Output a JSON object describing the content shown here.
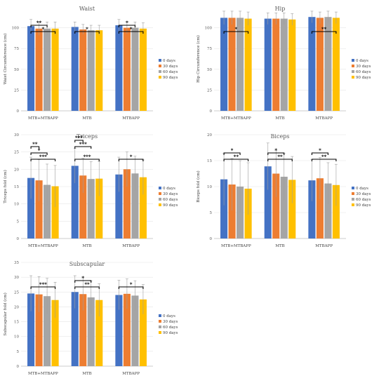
{
  "colors": {
    "0 days": "#4472C4",
    "30 days": "#ED7D31",
    "60 days": "#A5A5A5",
    "90 days": "#FFC000"
  },
  "chart_data": [
    {
      "type": "bar",
      "title": "Waist",
      "ylabel": "Waist Circumference (cm)",
      "ylim": [
        0,
        125
      ],
      "yticks": [
        0,
        25,
        50,
        75,
        100
      ],
      "ytick_labels": [
        "0",
        "25",
        "50",
        "75",
        "100"
      ],
      "categories": [
        "MTB+MTBAPP",
        "MTB",
        "MTBAPP"
      ],
      "series": [
        {
          "name": "0 days",
          "values": [
            102,
            101,
            103
          ],
          "err": [
            8,
            6,
            7
          ]
        },
        {
          "name": "30 days",
          "values": [
            99,
            98,
            100
          ],
          "err": [
            8,
            6,
            7
          ]
        },
        {
          "name": "60 days",
          "values": [
            99,
            97,
            100
          ],
          "err": [
            8,
            6,
            7
          ]
        },
        {
          "name": "90 days",
          "values": [
            99,
            97,
            99
          ],
          "err": [
            8,
            6,
            7
          ]
        }
      ],
      "brackets": [
        {
          "cat": 0,
          "from": 0,
          "to": 2,
          "level": 2,
          "label": "**"
        },
        {
          "cat": 0,
          "from": 0,
          "to": 3,
          "level": 1,
          "label": "*"
        },
        {
          "cat": 1,
          "from": 0,
          "to": 3,
          "level": 1,
          "label": "*"
        },
        {
          "cat": 2,
          "from": 0,
          "to": 2,
          "level": 2,
          "label": "*"
        },
        {
          "cat": 2,
          "from": 0,
          "to": 3,
          "level": 1,
          "label": "*"
        }
      ]
    },
    {
      "type": "bar",
      "title": "Hip",
      "ylabel": "Hip Circumference (cm)",
      "ylim": [
        0,
        125
      ],
      "yticks": [
        0,
        25,
        50,
        75,
        100
      ],
      "ytick_labels": [
        "0",
        "25",
        "50",
        "75",
        "100"
      ],
      "categories": [
        "MTB+MTBAPP",
        "MTB",
        "MTBAPP"
      ],
      "series": [
        {
          "name": "0 days",
          "values": [
            112,
            111,
            113
          ],
          "err": [
            8,
            7,
            7
          ]
        },
        {
          "name": "30 days",
          "values": [
            112,
            111,
            112
          ],
          "err": [
            8,
            7,
            7
          ]
        },
        {
          "name": "60 days",
          "values": [
            112,
            111,
            113
          ],
          "err": [
            8,
            7,
            7
          ]
        },
        {
          "name": "90 days",
          "values": [
            111,
            110,
            112
          ],
          "err": [
            8,
            7,
            7
          ]
        }
      ],
      "brackets": [
        {
          "cat": 0,
          "from": 0,
          "to": 3,
          "level": 1,
          "label": "*"
        },
        {
          "cat": 2,
          "from": 0,
          "to": 3,
          "level": 1,
          "label": "**"
        }
      ]
    },
    {
      "type": "bar",
      "title": "Triceps",
      "ylabel": "Triceps fold (cm)",
      "ylim": [
        0,
        30
      ],
      "yticks": [
        0,
        5,
        10,
        15,
        20,
        25,
        30
      ],
      "ytick_labels": [
        "0",
        "5",
        "10",
        "15",
        "20",
        "25",
        "30"
      ],
      "categories": [
        "MTB+MTBAPP",
        "MTB",
        "MTBAPP"
      ],
      "series": [
        {
          "name": "0 days",
          "values": [
            17.5,
            21,
            18.5
          ],
          "err": [
            6,
            5,
            5
          ]
        },
        {
          "name": "30 days",
          "values": [
            16.8,
            18.2,
            20
          ],
          "err": [
            6,
            5,
            5
          ]
        },
        {
          "name": "60 days",
          "values": [
            15.5,
            17.2,
            18.8
          ],
          "err": [
            6,
            5,
            5
          ]
        },
        {
          "name": "90 days",
          "values": [
            15.1,
            17.3,
            17.7
          ],
          "err": [
            6,
            5,
            5
          ]
        }
      ],
      "brackets": [
        {
          "cat": 0,
          "from": 0,
          "to": 1,
          "level": 3,
          "label": "**"
        },
        {
          "cat": 0,
          "from": 0,
          "to": 2,
          "level": 2,
          "label": "*"
        },
        {
          "cat": 0,
          "from": 0,
          "to": 3,
          "level": 1,
          "label": "***"
        },
        {
          "cat": 1,
          "from": 0,
          "to": 1,
          "level": 4,
          "label": "***"
        },
        {
          "cat": 1,
          "from": 0,
          "to": 2,
          "level": 3,
          "label": "***"
        },
        {
          "cat": 1,
          "from": 0,
          "to": 3,
          "level": 1,
          "label": "***"
        },
        {
          "cat": 2,
          "from": 0,
          "to": 3,
          "level": 1,
          "label": "*"
        }
      ]
    },
    {
      "type": "bar",
      "title": "Biceps",
      "ylabel": "Biceps fold (cm)",
      "ylim": [
        0,
        20
      ],
      "yticks": [
        0,
        5,
        10,
        15,
        20
      ],
      "ytick_labels": [
        "0",
        "5",
        "10",
        "15",
        "20"
      ],
      "categories": [
        "MTB+MTBAPP",
        "MTB",
        "MTBAPP"
      ],
      "series": [
        {
          "name": "0 days",
          "values": [
            11.4,
            13.9,
            11.2
          ],
          "err": [
            5,
            4.5,
            4
          ]
        },
        {
          "name": "30 days",
          "values": [
            10.4,
            12.5,
            11.6
          ],
          "err": [
            5,
            4.5,
            4
          ]
        },
        {
          "name": "60 days",
          "values": [
            10,
            11.9,
            10.6
          ],
          "err": [
            5,
            4.5,
            4
          ]
        },
        {
          "name": "90 days",
          "values": [
            9.6,
            11.3,
            10.3
          ],
          "err": [
            5,
            4.5,
            4
          ]
        }
      ],
      "brackets": [
        {
          "cat": 0,
          "from": 0,
          "to": 2,
          "level": 2,
          "label": "*"
        },
        {
          "cat": 0,
          "from": 0,
          "to": 3,
          "level": 1,
          "label": "**"
        },
        {
          "cat": 1,
          "from": 0,
          "to": 2,
          "level": 2,
          "label": "*"
        },
        {
          "cat": 1,
          "from": 0,
          "to": 3,
          "level": 1,
          "label": "**"
        },
        {
          "cat": 2,
          "from": 0,
          "to": 2,
          "level": 2,
          "label": "*"
        },
        {
          "cat": 2,
          "from": 0,
          "to": 3,
          "level": 1,
          "label": "**"
        }
      ]
    },
    {
      "type": "bar",
      "title": "Subscapular",
      "ylabel": "Subscapular fold (cm)",
      "ylim": [
        0,
        35
      ],
      "yticks": [
        0,
        5,
        10,
        15,
        20,
        25,
        30,
        35
      ],
      "ytick_labels": [
        "0",
        "5",
        "10",
        "15",
        "20",
        "25",
        "30",
        "35"
      ],
      "categories": [
        "MTB+MTBAPP",
        "MTB",
        "MTBAPP"
      ],
      "series": [
        {
          "name": "0 days",
          "values": [
            24.5,
            25,
            24
          ],
          "err": [
            6,
            5.5,
            5
          ]
        },
        {
          "name": "30 days",
          "values": [
            24.2,
            24.3,
            24.4
          ],
          "err": [
            6,
            5.5,
            5
          ]
        },
        {
          "name": "60 days",
          "values": [
            23.6,
            23.2,
            23.8
          ],
          "err": [
            6,
            5.5,
            5
          ]
        },
        {
          "name": "90 days",
          "values": [
            22.3,
            22.3,
            22.5
          ],
          "err": [
            6,
            5.5,
            5
          ]
        }
      ],
      "brackets": [
        {
          "cat": 0,
          "from": 0,
          "to": 3,
          "level": 1,
          "label": "***"
        },
        {
          "cat": 1,
          "from": 0,
          "to": 2,
          "level": 2,
          "label": "*"
        },
        {
          "cat": 1,
          "from": 0,
          "to": 3,
          "level": 1,
          "label": "**"
        },
        {
          "cat": 2,
          "from": 0,
          "to": 3,
          "level": 1,
          "label": "*"
        }
      ]
    }
  ]
}
